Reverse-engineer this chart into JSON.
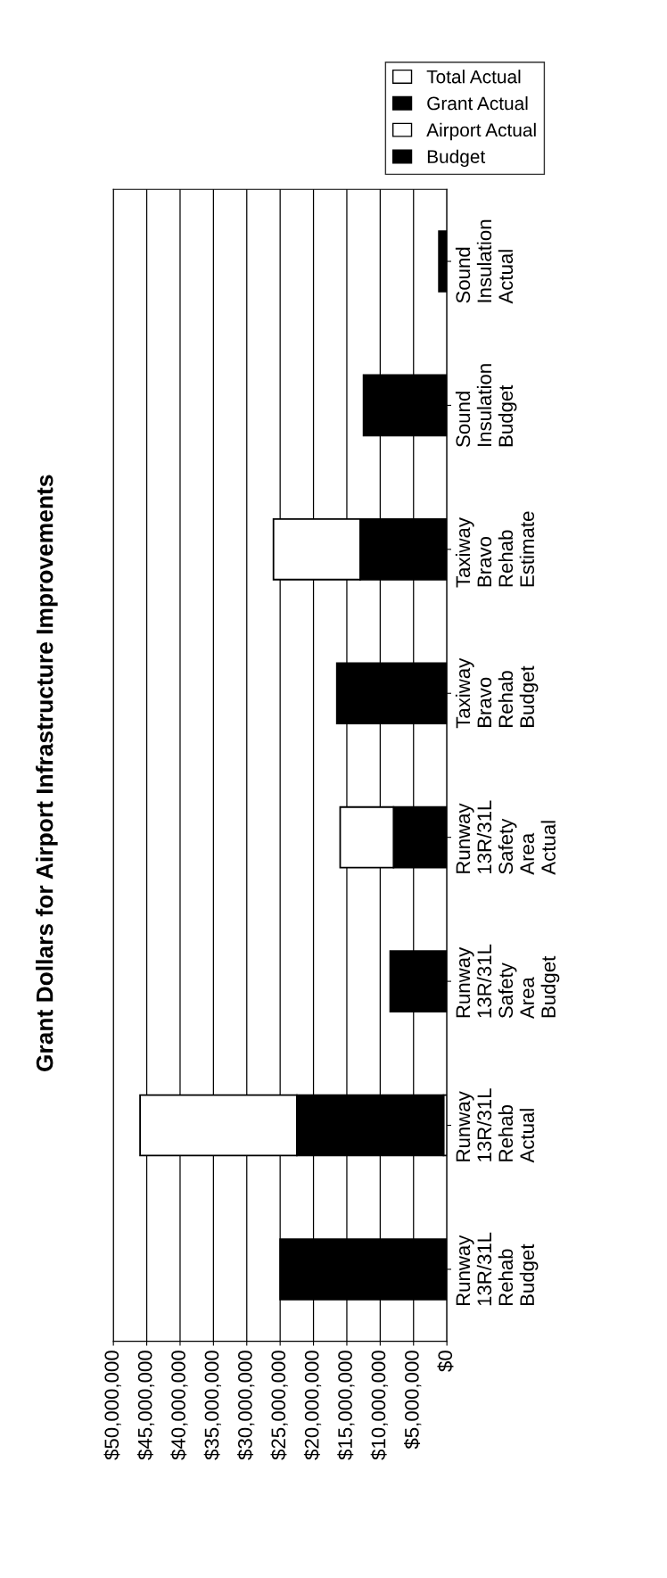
{
  "chart_data": {
    "type": "bar",
    "orientation": "horizontal",
    "stacked": true,
    "title": "Grant Dollars for Airport Infrastructure Improvements",
    "categories": [
      "Sound\nInsulation\nActual",
      "Sound\nInsulation\nBudget",
      "Taxiway\nBravo\nRehab\nEstimate",
      "Taxiway\nBravo\nRehab\nBudget",
      "Runway\n13R/31L\nSafety\nArea\nActual",
      "Runway\n13R/31L\nSafety\nArea\nBudget",
      "Runway\n13R/31L\nRehab\nActual",
      "Runway\n13R/31L\nRehab\nBudget"
    ],
    "series": [
      {
        "name": "Total Actual",
        "color": "#ffffff",
        "values": [
          null,
          null,
          null,
          null,
          null,
          null,
          500000,
          null
        ]
      },
      {
        "name": "Grant Actual",
        "color": "#000000",
        "values": [
          1200000,
          null,
          13000000,
          null,
          8000000,
          null,
          22000000,
          null
        ]
      },
      {
        "name": "Airport Actual",
        "color": "#ffffff",
        "values": [
          null,
          null,
          13000000,
          null,
          8000000,
          null,
          23500000,
          null
        ]
      },
      {
        "name": "Budget",
        "color": "#000000",
        "values": [
          null,
          12500000,
          null,
          16500000,
          null,
          8500000,
          null,
          25000000
        ]
      }
    ],
    "xlim": [
      50000000,
      0
    ],
    "xticks": [
      {
        "value": 50000000,
        "label": "$50,000,000"
      },
      {
        "value": 45000000,
        "label": "$45,000,000"
      },
      {
        "value": 40000000,
        "label": "$40,000,000"
      },
      {
        "value": 35000000,
        "label": "$35,000,000"
      },
      {
        "value": 30000000,
        "label": "$30,000,000"
      },
      {
        "value": 25000000,
        "label": "$25,000,000"
      },
      {
        "value": 20000000,
        "label": "$20,000,000"
      },
      {
        "value": 15000000,
        "label": "$15,000,000"
      },
      {
        "value": 10000000,
        "label": "$10,000,000"
      },
      {
        "value": 5000000,
        "label": "$5,000,000"
      },
      {
        "value": 0,
        "label": "$0"
      }
    ],
    "grid": "x",
    "legend": "top right"
  }
}
